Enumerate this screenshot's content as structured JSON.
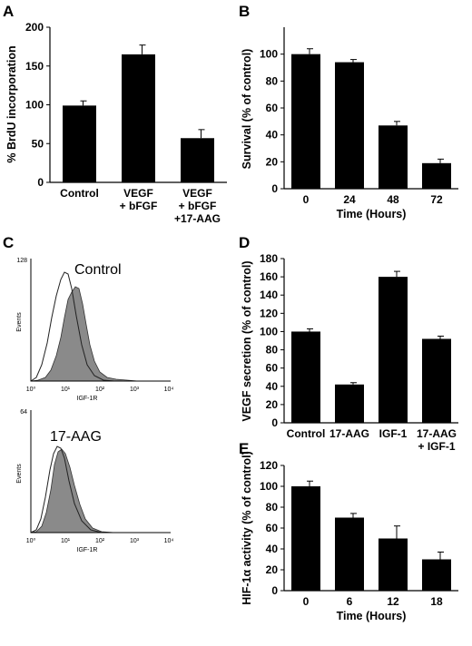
{
  "panels": {
    "A": "A",
    "B": "B",
    "C": "C",
    "D": "D",
    "E": "E"
  },
  "flow": {
    "control": {
      "title": "Control",
      "ymax_label": "128",
      "ylabel": "Events",
      "xlabel": "IGF-1R",
      "xticks": [
        "10⁰",
        "10¹",
        "10²",
        "10³",
        "10⁴"
      ]
    },
    "treated": {
      "title": "17-AAG",
      "ymax_label": "64",
      "ylabel": "Events",
      "xlabel": "IGF-1R",
      "xticks": [
        "10⁰",
        "10¹",
        "10²",
        "10³",
        "10⁴"
      ]
    }
  },
  "chart_data": [
    {
      "id": "A",
      "type": "bar",
      "categories": [
        "Control",
        "VEGF\n+ bFGF",
        "VEGF\n+ bFGF\n+17-AAG"
      ],
      "values": [
        99,
        165,
        57
      ],
      "errors": [
        6,
        12,
        11
      ],
      "ylabel": "% BrdU incorporation",
      "xlabel": "",
      "ylim": [
        0,
        200
      ],
      "yticks": [
        0,
        50,
        100,
        150,
        200
      ],
      "grid": false
    },
    {
      "id": "B",
      "type": "bar",
      "categories": [
        "0",
        "24",
        "48",
        "72"
      ],
      "values": [
        100,
        94,
        47,
        19
      ],
      "errors": [
        4,
        2,
        3,
        3
      ],
      "ylabel": "Survival (% of control)",
      "xlabel": "Time (Hours)",
      "ylim": [
        0,
        120
      ],
      "yticks": [
        0,
        20,
        40,
        60,
        80,
        100
      ],
      "grid": false
    },
    {
      "id": "D",
      "type": "bar",
      "categories": [
        "Control",
        "17-AAG",
        "IGF-1",
        "17-AAG\n+ IGF-1"
      ],
      "values": [
        100,
        42,
        160,
        92
      ],
      "errors": [
        3,
        2,
        6,
        3
      ],
      "ylabel": "VEGF secretion (% of control)",
      "xlabel": "",
      "ylim": [
        0,
        180
      ],
      "yticks": [
        0,
        20,
        40,
        60,
        80,
        100,
        120,
        140,
        160,
        180
      ],
      "grid": false
    },
    {
      "id": "E",
      "type": "bar",
      "categories": [
        "0",
        "6",
        "12",
        "18"
      ],
      "values": [
        100,
        70,
        50,
        30
      ],
      "errors": [
        5,
        4,
        12,
        7
      ],
      "ylabel": "HIF-1α activity (% of control)",
      "xlabel": "Time (Hours)",
      "ylim": [
        0,
        120
      ],
      "yticks": [
        0,
        20,
        40,
        60,
        80,
        100,
        120
      ],
      "grid": false
    }
  ]
}
